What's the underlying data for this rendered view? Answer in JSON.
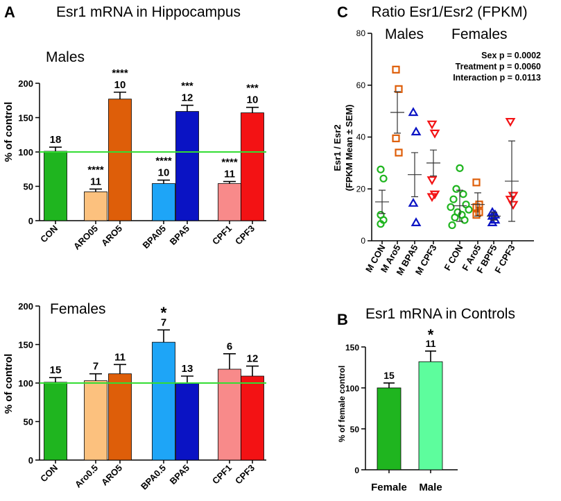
{
  "figure": {
    "panel_letters": [
      "A",
      "B",
      "C"
    ]
  },
  "chart_data": [
    {
      "id": "A_males",
      "type": "bar",
      "title": "Esr1 mRNA in Hippocampus",
      "subtitle": "Males",
      "ylabel": "% of control",
      "ylim": [
        0,
        200
      ],
      "yticks": [
        0,
        50,
        100,
        150,
        200
      ],
      "reference_line": 100,
      "reference_color": "#33dd33",
      "categories": [
        "CON",
        "ARO05",
        "ARO5",
        "BPA05",
        "BPA5",
        "CPF1",
        "CPF3"
      ],
      "values": [
        101,
        42,
        177,
        54,
        159,
        54,
        157
      ],
      "errors": [
        6,
        4,
        10,
        5,
        9,
        3,
        8
      ],
      "n_labels": [
        "18",
        "11",
        "10",
        "10",
        "12",
        "11",
        "10"
      ],
      "sig_labels": [
        "",
        "****",
        "****",
        "****",
        "***",
        "****",
        "***"
      ],
      "colors": [
        "#1fb51f",
        "#fcc17e",
        "#de5e09",
        "#1ea5f7",
        "#0a13c4",
        "#f88a8a",
        "#f31214"
      ]
    },
    {
      "id": "A_females",
      "type": "bar",
      "subtitle": "Females",
      "ylabel": "% of control",
      "ylim": [
        0,
        200
      ],
      "yticks": [
        0,
        50,
        100,
        150,
        200
      ],
      "reference_line": 100,
      "reference_color": "#33dd33",
      "categories": [
        "CON",
        "Aro0.5",
        "ARO5",
        "BPA0.5",
        "BPA5",
        "CPF1",
        "CPF3"
      ],
      "values": [
        101,
        103,
        112,
        153,
        100,
        118,
        109
      ],
      "errors": [
        6,
        9,
        12,
        16,
        9,
        20,
        13
      ],
      "n_labels": [
        "15",
        "7",
        "11",
        "7",
        "13",
        "6",
        "12"
      ],
      "sig_labels": [
        "",
        "",
        "",
        "*",
        "",
        "",
        ""
      ],
      "colors": [
        "#1fb51f",
        "#fcc17e",
        "#de5e09",
        "#1ea5f7",
        "#0a13c4",
        "#f88a8a",
        "#f31214"
      ]
    },
    {
      "id": "C",
      "type": "scatter",
      "title": "Ratio Esr1/Esr2 (FPKM)",
      "group_labels": [
        "Males",
        "Females"
      ],
      "ylabel": "Esr1 / Esr2",
      "ylabel2": "(FPKM Mean ± SEM)",
      "ylim": [
        0,
        80
      ],
      "yticks": [
        0,
        20,
        40,
        60,
        80
      ],
      "stats": [
        "Sex p = 0.0002",
        "Treatment p = 0.0060",
        "Interaction p = 0.0113"
      ],
      "series": [
        {
          "name": "M CON",
          "marker": "circle",
          "color": "#1fb51f",
          "points": [
            27.5,
            24,
            10,
            8,
            6.5
          ],
          "mean": 15,
          "sem": 4.5
        },
        {
          "name": "M Aro5",
          "marker": "square",
          "color": "#de5e09",
          "points": [
            66,
            58.5,
            39.5,
            34
          ],
          "mean": 49.5,
          "sem": 8
        },
        {
          "name": "M BPA5",
          "marker": "triangle-up",
          "color": "#0a13c4",
          "points": [
            49.5,
            42,
            14.5,
            7
          ],
          "mean": 25.5,
          "sem": 8.5
        },
        {
          "name": "M CPF3",
          "marker": "triangle-down",
          "color": "#f31214",
          "points": [
            45,
            41.5,
            23.5,
            18,
            17
          ],
          "mean": 30,
          "sem": 5
        },
        {
          "name": "F CON",
          "marker": "circle",
          "color": "#1fb51f",
          "points": [
            28,
            20,
            18,
            16,
            14,
            13,
            12,
            11,
            10,
            9,
            8,
            6
          ],
          "mean": 13.5,
          "sem": 6
        },
        {
          "name": "F Aro5",
          "marker": "square",
          "color": "#de5e09",
          "points": [
            22.5,
            14,
            13,
            11,
            10
          ],
          "mean": 14,
          "sem": 4.5
        },
        {
          "name": "F BPF5",
          "marker": "triangle-up",
          "color": "#0a13c4",
          "points": [
            11,
            10,
            9.5,
            8,
            7
          ],
          "mean": 9.5,
          "sem": 1.5
        },
        {
          "name": "F CPF3",
          "marker": "triangle-down",
          "color": "#f31214",
          "points": [
            46,
            17.5,
            16,
            14
          ],
          "mean": 23,
          "sem": 15.5
        }
      ]
    },
    {
      "id": "B",
      "type": "bar",
      "title": "Esr1 mRNA in Controls",
      "ylabel": "% of female control",
      "ylim": [
        0,
        150
      ],
      "yticks": [
        0,
        50,
        100,
        150
      ],
      "categories": [
        "Female",
        "Male"
      ],
      "values": [
        100,
        132
      ],
      "errors": [
        6,
        13
      ],
      "n_labels": [
        "15",
        "11"
      ],
      "sig_labels": [
        "",
        "*"
      ],
      "colors": [
        "#1fb51f",
        "#5dfd9d"
      ]
    }
  ]
}
